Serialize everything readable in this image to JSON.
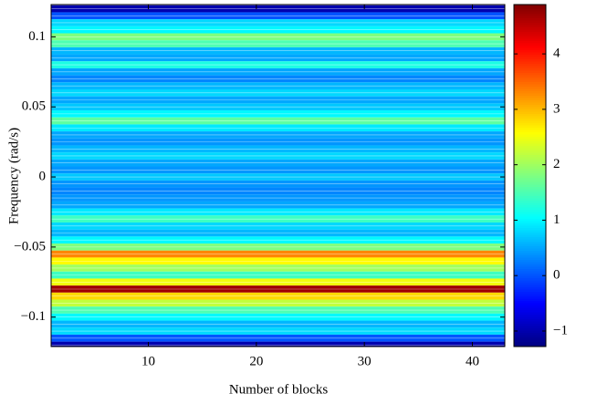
{
  "chart_data": {
    "type": "contour",
    "xlabel": "Number of blocks",
    "ylabel": "Frequency (rad/s)",
    "xlim": [
      1,
      43
    ],
    "xticks": [
      10,
      20,
      30,
      40
    ],
    "ylim": [
      -0.121,
      0.123
    ],
    "yticks": [
      {
        "value": -0.1,
        "label": "−0.1"
      },
      {
        "value": -0.05,
        "label": "−0.05"
      },
      0,
      0.05,
      0.1
    ],
    "y": [
      0.12,
      0.115,
      0.11,
      0.105,
      0.1,
      0.095,
      0.09,
      0.085,
      0.08,
      0.075,
      0.07,
      0.065,
      0.06,
      0.055,
      0.05,
      0.045,
      0.04,
      0.035,
      0.03,
      0.025,
      0.02,
      0.015,
      0.01,
      0.005,
      0,
      -0.005,
      -0.01,
      -0.015,
      -0.02,
      -0.025,
      -0.03,
      -0.035,
      -0.04,
      -0.045,
      -0.05,
      -0.055,
      -0.06,
      -0.065,
      -0.07,
      -0.075,
      -0.08,
      -0.085,
      -0.09,
      -0.095,
      -0.1,
      -0.105,
      -0.11,
      -0.115,
      -0.12
    ],
    "values": [
      -1,
      0,
      0.8,
      1.0,
      1.8,
      1.5,
      0.6,
      0.5,
      1.2,
      0.5,
      0.3,
      0.6,
      0.8,
      0.5,
      0.7,
      1.0,
      1.6,
      0.9,
      0.5,
      0.4,
      0.6,
      0.8,
      0.5,
      0.4,
      0.7,
      0.4,
      0.3,
      0.4,
      0.5,
      0.9,
      1.4,
      0.8,
      0.6,
      1.0,
      1.8,
      3.3,
      2.6,
      2.0,
      1.4,
      2.5,
      4.7,
      2.8,
      2.2,
      1.5,
      1.0,
      0.6,
      0.8,
      0.0,
      -1.0
    ],
    "clim": [
      -1.28,
      4.89
    ],
    "cticks": [
      {
        "value": -1,
        "label": "−1"
      },
      0,
      1,
      2,
      3,
      4
    ]
  }
}
